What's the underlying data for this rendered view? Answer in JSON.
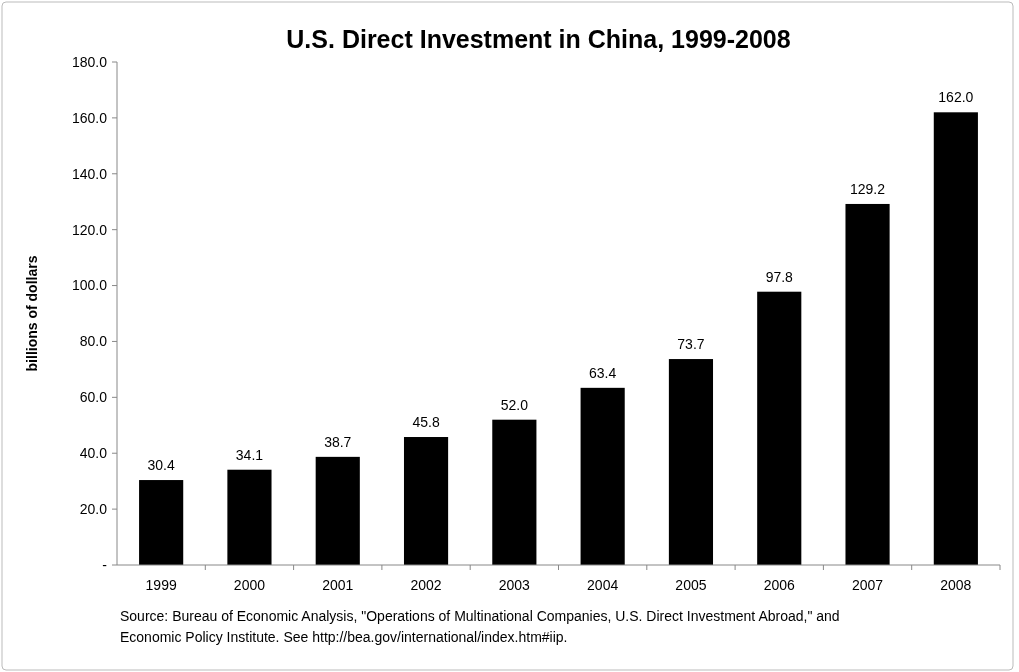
{
  "chart_data": {
    "type": "bar",
    "title": "U.S. Direct Investment in China, 1999-2008",
    "ylabel": "billions of dollars",
    "categories": [
      "1999",
      "2000",
      "2001",
      "2002",
      "2003",
      "2004",
      "2005",
      "2006",
      "2007",
      "2008"
    ],
    "values": [
      30.4,
      34.1,
      38.7,
      45.8,
      52.0,
      63.4,
      73.7,
      97.8,
      129.2,
      162.0
    ],
    "value_labels": [
      "30.4",
      "34.1",
      "38.7",
      "45.8",
      "52.0",
      "63.4",
      "73.7",
      "97.8",
      "129.2",
      "162.0"
    ],
    "color": "#000000",
    "ylim": [
      0,
      180
    ],
    "yticks": [
      {
        "value": 0,
        "label": "-"
      },
      {
        "value": 20,
        "label": "20.0"
      },
      {
        "value": 40,
        "label": "40.0"
      },
      {
        "value": 60,
        "label": "60.0"
      },
      {
        "value": 80,
        "label": "80.0"
      },
      {
        "value": 100,
        "label": "100.0"
      },
      {
        "value": 120,
        "label": "120.0"
      },
      {
        "value": 140,
        "label": "140.0"
      },
      {
        "value": 160,
        "label": "160.0"
      },
      {
        "value": 180,
        "label": "180.0"
      }
    ],
    "grid": false,
    "annotations": [
      "Source:  Bureau of Economic Analysis, \"Operations of Multinational Companies, U.S. Direct Investment Abroad,\" and",
      "Economic Policy Institute.  See http://bea.gov/international/index.htm#iip."
    ]
  }
}
